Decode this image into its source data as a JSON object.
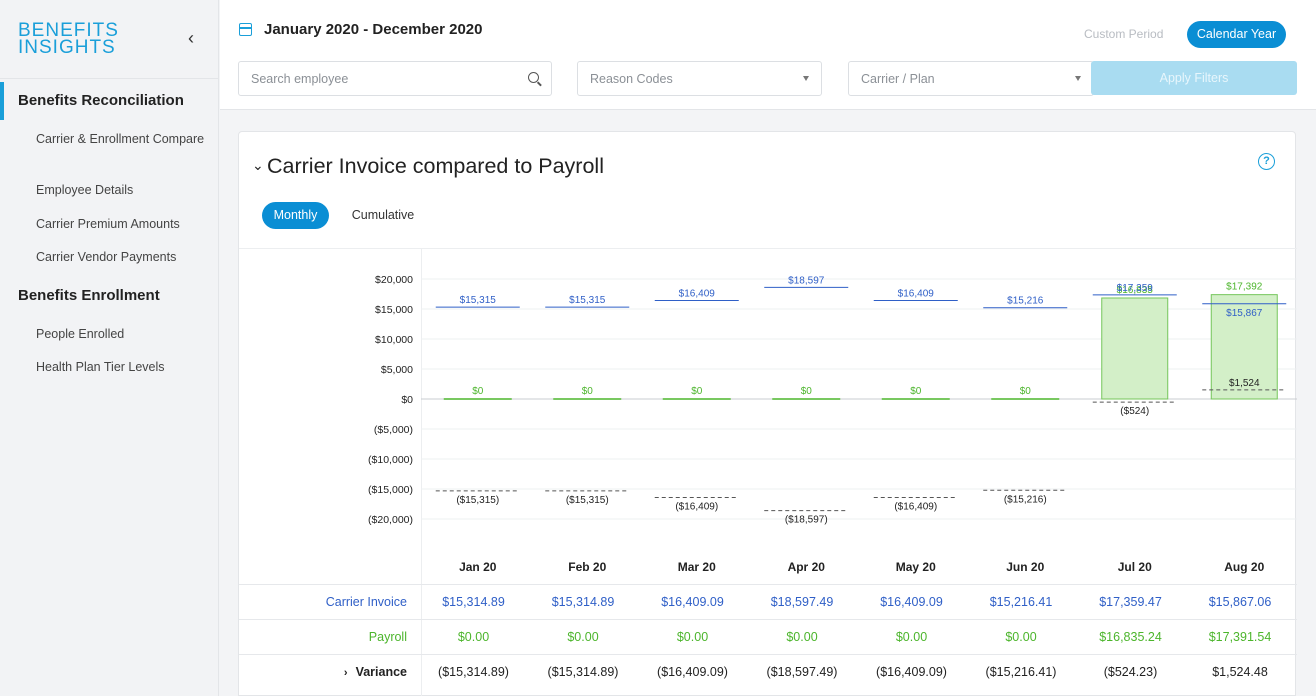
{
  "sidebar": {
    "logo_line1": "BENEFITS",
    "logo_line2": "INSIGHTS",
    "collapse_glyph": "‹",
    "sections": [
      {
        "label": "Benefits Reconciliation",
        "items": [
          "Carrier & Enrollment Compare",
          "Employee Details",
          "Carrier Premium Amounts",
          "Carrier Vendor Payments"
        ]
      },
      {
        "label": "Benefits Enrollment",
        "items": [
          "People Enrolled",
          "Health Plan Tier Levels"
        ]
      }
    ]
  },
  "header": {
    "period": "January 2020  -  December 2020",
    "custom_period": "Custom Period",
    "calendar_year": "Calendar Year",
    "search_placeholder": "Search employee",
    "reason_codes": "Reason Codes",
    "carrier_plan": "Carrier / Plan",
    "apply_filters": "Apply Filters"
  },
  "card": {
    "title": "Carrier Invoice compared to Payroll",
    "help": "?",
    "tab_monthly": "Monthly",
    "tab_cumulative": "Cumulative"
  },
  "chart_data": {
    "type": "bar",
    "categories": [
      "Jan 20",
      "Feb 20",
      "Mar 20",
      "Apr 20",
      "May 20",
      "Jun 20",
      "Jul 20",
      "Aug 20"
    ],
    "y_ticks": [
      "$20,000",
      "$15,000",
      "$10,000",
      "$5,000",
      "$0",
      "($5,000)",
      "($10,000)",
      "($15,000)",
      "($20,000)"
    ],
    "ylim": [
      -20000,
      20000
    ],
    "series": [
      {
        "name": "Carrier Invoice",
        "values": [
          15315,
          15315,
          16409,
          18597,
          16409,
          15216,
          17359,
          15867
        ],
        "labels": [
          "$15,315",
          "$15,315",
          "$16,409",
          "$18,597",
          "$16,409",
          "$15,216",
          "$17,359",
          "$15,867"
        ],
        "color": "#2f5fc7"
      },
      {
        "name": "Payroll",
        "values": [
          0,
          0,
          0,
          0,
          0,
          0,
          16835,
          17392
        ],
        "labels": [
          "$0",
          "$0",
          "$0",
          "$0",
          "$0",
          "$0",
          "$16,835",
          "$17,392"
        ],
        "color": "#4cb52c"
      },
      {
        "name": "Variance",
        "values": [
          -15315,
          -15315,
          -16409,
          -18597,
          -16409,
          -15216,
          -524,
          1524
        ],
        "labels": [
          "($15,315)",
          "($15,315)",
          "($16,409)",
          "($18,597)",
          "($16,409)",
          "($15,216)",
          "($524)",
          "$1,524"
        ],
        "color": "#333333"
      }
    ]
  },
  "table": {
    "rows": [
      {
        "label": "Carrier Invoice",
        "values": [
          "$15,314.89",
          "$15,314.89",
          "$16,409.09",
          "$18,597.49",
          "$16,409.09",
          "$15,216.41",
          "$17,359.47",
          "$15,867.06"
        ]
      },
      {
        "label": "Payroll",
        "values": [
          "$0.00",
          "$0.00",
          "$0.00",
          "$0.00",
          "$0.00",
          "$0.00",
          "$16,835.24",
          "$17,391.54"
        ]
      },
      {
        "label": "Variance",
        "values": [
          "($15,314.89)",
          "($15,314.89)",
          "($16,409.09)",
          "($18,597.49)",
          "($16,409.09)",
          "($15,216.41)",
          "($524.23)",
          "$1,524.48"
        ]
      }
    ]
  }
}
